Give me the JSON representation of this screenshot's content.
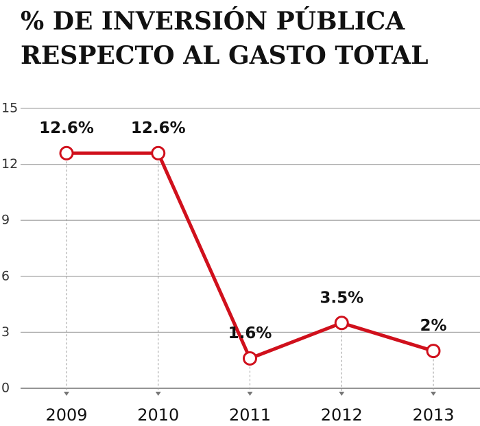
{
  "chart_data": {
    "type": "line",
    "title": [
      "% DE INVERSIÓN PÚBLICA",
      "RESPECTO AL GASTO TOTAL"
    ],
    "categories": [
      "2009",
      "2010",
      "2011",
      "2012",
      "2013"
    ],
    "values": [
      12.6,
      12.6,
      1.6,
      3.5,
      2
    ],
    "value_labels": [
      "12.6%",
      "12.6%",
      "1.6%",
      "3.5%",
      "2%"
    ],
    "color": "#d0101c",
    "ylim": [
      0,
      15
    ],
    "yticks": [
      0,
      3,
      6,
      9,
      12,
      15
    ],
    "grid": true
  }
}
